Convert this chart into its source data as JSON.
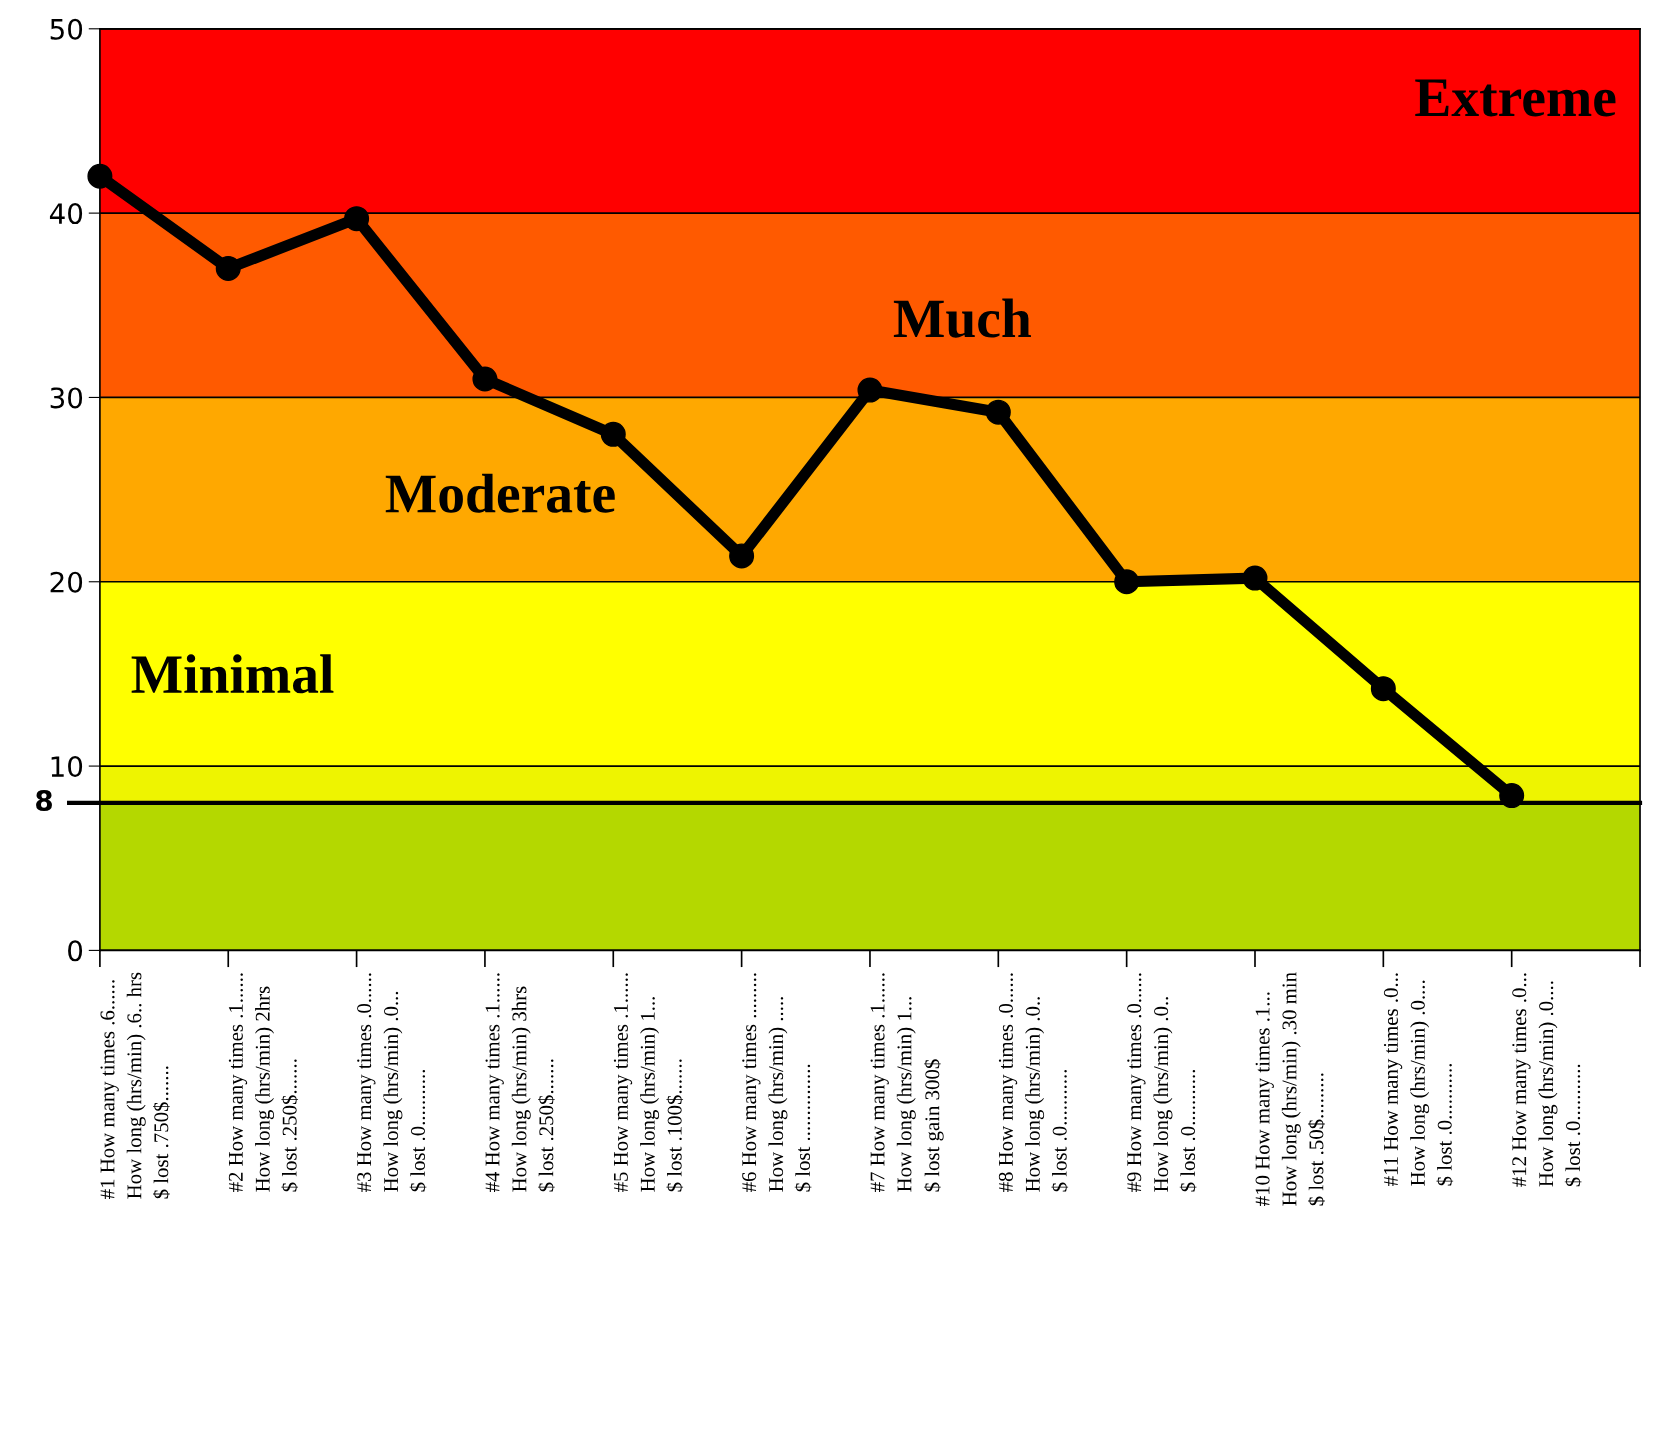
{
  "chart_data": {
    "type": "line",
    "categories": [
      "#1 How many times .6......\nHow long (hrs/min) .6.. hrs\n$ lost .750$.......",
      "#2 How many times .1......\nHow long (hrs/min) 2hrs\n$ lost .250$.......",
      "#3 How many times .0......\nHow long (hrs/min) .0...\n$ lost .0...........",
      "#4 How many times .1......\nHow long (hrs/min) 3hrs\n$ lost .250$.......",
      "#5 How many times .1......\nHow long (hrs/min) 1...\n$ lost .100$.......",
      "#6 How many times .........\nHow long (hrs/min) .....\n$ lost ...............",
      "#7 How many times .1......\nHow long (hrs/min) 1...\n$ lost gain 300$",
      "#8 How many times .0......\nHow long (hrs/min) .0..\n$ lost .0...........",
      "#9 How many times .0......\nHow long (hrs/min) .0..\n$ lost .0...........",
      "#10 How many times .1...\nHow long (hrs/min) .30 min\n$ lost .50$.........",
      "#11 How many times .0...\nHow long (hrs/min) .0....\n$ lost .0...........",
      "#12 How many times .0...\nHow long (hrs/min) .0....\n$ lost .0..........."
    ],
    "series": [
      {
        "color": "#000000",
        "values": [
          42,
          37,
          39.7,
          31,
          28,
          21.4,
          30.4,
          29.2,
          20,
          20.2,
          14.2,
          8.4
        ]
      }
    ],
    "ylim": [
      0,
      50
    ],
    "yticks": [
      0,
      10,
      20,
      30,
      40,
      50
    ],
    "grid": "y",
    "marker": "circle",
    "line_style": "solid",
    "legend": false,
    "bands": [
      {
        "axis": "y",
        "from": 40,
        "to": 50,
        "label": "Extreme",
        "color": "#ff0000"
      },
      {
        "axis": "y",
        "from": 30,
        "to": 40,
        "label": "Much",
        "color": "#ff5a00"
      },
      {
        "axis": "y",
        "from": 20,
        "to": 30,
        "label": "Moderate",
        "color": "#ffa800"
      },
      {
        "axis": "y",
        "from": 10,
        "to": 20,
        "label": "Minimal",
        "color": "#ffff00"
      },
      {
        "axis": "y",
        "from": 8,
        "to": 10,
        "label": null,
        "color": "#eef400"
      },
      {
        "axis": "y",
        "from": 0,
        "to": 8,
        "label": null,
        "color": "#b4d800"
      }
    ],
    "ref_lines": [
      {
        "axis": "y",
        "value": 8,
        "label": "8",
        "color": "#000000",
        "line_style": "solid"
      }
    ]
  }
}
